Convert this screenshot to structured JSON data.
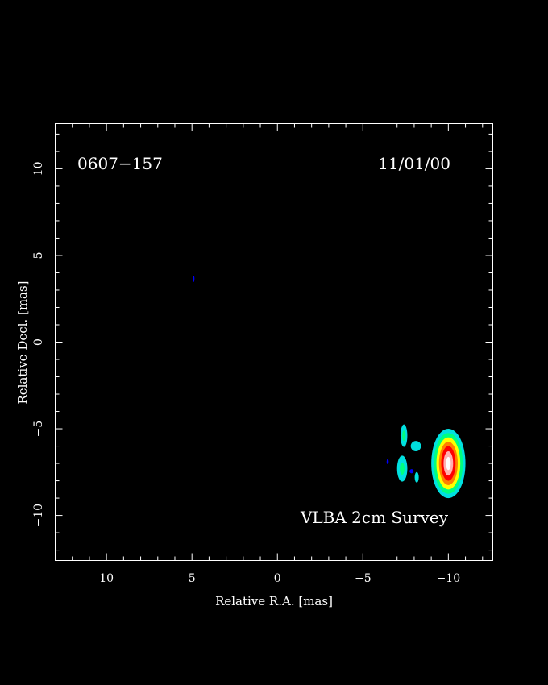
{
  "chart_data": {
    "type": "heatmap",
    "title": "",
    "xlabel": "Relative R.A. [mas]",
    "ylabel": "Relative Decl. [mas]",
    "xlim": [
      13,
      -12.6
    ],
    "ylim": [
      -12.6,
      12.6
    ],
    "x_ticks": [
      10,
      5,
      0,
      -5,
      -10
    ],
    "y_ticks": [
      10,
      5,
      0,
      -5,
      -10
    ],
    "x_tick_labels": [
      "10",
      "5",
      "0",
      "−5",
      "−10"
    ],
    "y_tick_labels": [
      "10",
      "5",
      "0",
      "−5",
      "−10"
    ],
    "grid": false,
    "source_name": "0607−157",
    "epoch": "11/01/00",
    "survey_label": "VLBA 2cm Survey",
    "colormap": [
      "#0000ff",
      "#00e0e0",
      "#00ff80",
      "#ffff00",
      "#ff8000",
      "#ff0000",
      "#ffb0b0",
      "#ffffff"
    ],
    "components": [
      {
        "name": "core",
        "x": -10.0,
        "y": -7.0,
        "levels": [
          {
            "rx": 1.0,
            "ry": 2.0,
            "color": "#00e0e0"
          },
          {
            "rx": 0.85,
            "ry": 1.75,
            "color": "#00ff80"
          },
          {
            "rx": 0.7,
            "ry": 1.5,
            "color": "#ffff00"
          },
          {
            "rx": 0.55,
            "ry": 1.25,
            "color": "#ff8000"
          },
          {
            "rx": 0.42,
            "ry": 1.0,
            "color": "#ff0000"
          },
          {
            "rx": 0.28,
            "ry": 0.7,
            "color": "#ffb0b0"
          },
          {
            "rx": 0.14,
            "ry": 0.38,
            "color": "#ffffff"
          }
        ]
      },
      {
        "name": "jet-1",
        "x": -7.4,
        "y": -5.4,
        "levels": [
          {
            "rx": 0.2,
            "ry": 0.65,
            "color": "#00e0e0"
          },
          {
            "rx": 0.1,
            "ry": 0.3,
            "color": "#00ff80"
          }
        ]
      },
      {
        "name": "jet-2",
        "x": -7.3,
        "y": -7.3,
        "levels": [
          {
            "rx": 0.3,
            "ry": 0.75,
            "color": "#00e0e0"
          },
          {
            "rx": 0.14,
            "ry": 0.35,
            "color": "#00ff80"
          }
        ]
      },
      {
        "name": "jet-3",
        "x": -8.1,
        "y": -6.0,
        "levels": [
          {
            "rx": 0.3,
            "ry": 0.3,
            "color": "#00e0e0"
          }
        ]
      },
      {
        "name": "jet-4",
        "x": -8.15,
        "y": -7.8,
        "levels": [
          {
            "rx": 0.12,
            "ry": 0.3,
            "color": "#00e0e0"
          }
        ]
      },
      {
        "name": "jet-5",
        "x": -7.85,
        "y": -7.45,
        "levels": [
          {
            "rx": 0.12,
            "ry": 0.12,
            "color": "#0000ff"
          }
        ]
      },
      {
        "name": "jet-6",
        "x": -6.45,
        "y": -6.9,
        "levels": [
          {
            "rx": 0.06,
            "ry": 0.15,
            "color": "#0000ff"
          }
        ]
      },
      {
        "name": "stray",
        "x": 4.9,
        "y": 3.65,
        "levels": [
          {
            "rx": 0.04,
            "ry": 0.18,
            "color": "#0000ff"
          }
        ]
      }
    ]
  }
}
